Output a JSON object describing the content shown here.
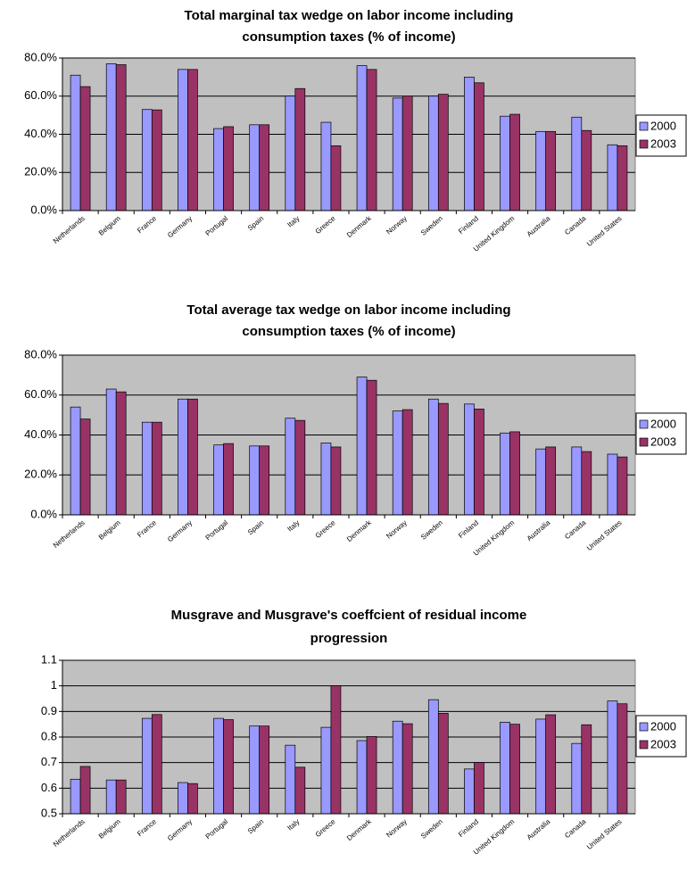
{
  "chart_data": [
    {
      "type": "bar",
      "title": [
        "Total marginal tax wedge on labor income including",
        "consumption taxes (% of income)"
      ],
      "categories": [
        "Netherlands",
        "Belgium",
        "France",
        "Germany",
        "Portugal",
        "Spain",
        "Italy",
        "Greece",
        "Denmark",
        "Norway",
        "Sweden",
        "Finland",
        "United  Kingdom",
        "Australia",
        "Canada",
        "United States"
      ],
      "series": [
        {
          "name": "2000",
          "color": "#9999ff",
          "values": [
            71,
            77,
            53,
            74,
            43,
            45,
            60,
            46.3,
            76,
            59,
            60,
            70,
            49.5,
            41.5,
            49,
            34.5
          ]
        },
        {
          "name": "2003",
          "color": "#993366",
          "values": [
            65,
            76.5,
            52.8,
            74,
            44,
            45,
            64,
            34,
            74,
            60,
            61,
            67,
            50.5,
            41.5,
            42,
            34
          ]
        }
      ],
      "ylim": [
        0,
        80
      ],
      "yticks": [
        {
          "value": 0,
          "label": "0.0%"
        },
        {
          "value": 20,
          "label": "20.0%"
        },
        {
          "value": 40,
          "label": "40.0%"
        },
        {
          "value": 60,
          "label": "60.0%"
        },
        {
          "value": 80,
          "label": "80.0%"
        }
      ],
      "grid": true,
      "legend": "right"
    },
    {
      "type": "bar",
      "title": [
        "Total average tax wedge on labor income including",
        "consumption taxes (% of income)"
      ],
      "categories": [
        "Netherlands",
        "Belgium",
        "France",
        "Germany",
        "Portugal",
        "Spain",
        "Italy",
        "Greece",
        "Denmark",
        "Norway",
        "Sweden",
        "Finland",
        "United  Kingdom",
        "Australia",
        "Canada",
        "United States"
      ],
      "series": [
        {
          "name": "2000",
          "color": "#9999ff",
          "values": [
            54,
            63,
            46.4,
            58,
            35,
            34.5,
            48.4,
            36,
            69,
            52,
            58,
            55.5,
            41,
            33,
            34,
            30.4
          ]
        },
        {
          "name": "2003",
          "color": "#993366",
          "values": [
            48,
            61.6,
            46.4,
            58,
            35.7,
            34.5,
            47.3,
            34,
            67.4,
            52.7,
            55.8,
            53,
            41.6,
            34,
            31.7,
            29
          ]
        }
      ],
      "ylim": [
        0,
        80
      ],
      "yticks": [
        {
          "value": 0,
          "label": "0.0%"
        },
        {
          "value": 20,
          "label": "20.0%"
        },
        {
          "value": 40,
          "label": "40.0%"
        },
        {
          "value": 60,
          "label": "60.0%"
        },
        {
          "value": 80,
          "label": "80.0%"
        }
      ],
      "grid": true,
      "legend": "right"
    },
    {
      "type": "bar",
      "title": [
        "Musgrave and Musgrave's coeffcient of residual income",
        "progression"
      ],
      "categories": [
        "Netherlands",
        "Belgium",
        "France",
        "Germany",
        "Portugal",
        "Spain",
        "Italy",
        "Greece",
        "Denmark",
        "Norway",
        "Sweden",
        "Finland",
        "United  Kingdom",
        "Australia",
        "Canada",
        "United States"
      ],
      "series": [
        {
          "name": "2000",
          "color": "#9999ff",
          "values": [
            0.635,
            0.632,
            0.873,
            0.622,
            0.873,
            0.843,
            0.768,
            0.838,
            0.786,
            0.862,
            0.946,
            0.675,
            0.858,
            0.87,
            0.775,
            0.941
          ]
        },
        {
          "name": "2003",
          "color": "#993366",
          "values": [
            0.685,
            0.632,
            0.888,
            0.618,
            0.868,
            0.843,
            0.682,
            1.0,
            0.802,
            0.852,
            0.893,
            0.7,
            0.85,
            0.887,
            0.848,
            0.93
          ]
        }
      ],
      "ylim": [
        0.5,
        1.1
      ],
      "yticks": [
        0.5,
        0.6,
        0.7,
        0.8,
        0.9,
        1,
        1.1
      ],
      "grid": true,
      "legend": "right"
    }
  ]
}
